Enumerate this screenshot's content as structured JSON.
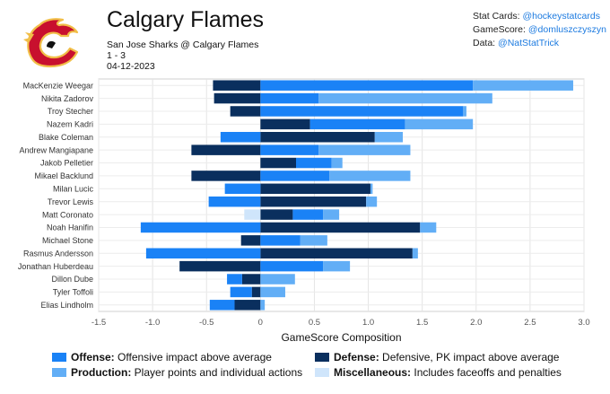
{
  "header": {
    "title": "Calgary Flames",
    "matchup": "San Jose Sharks @ Calgary Flames",
    "score": "1 - 3",
    "date": "04-12-2023"
  },
  "credits": [
    {
      "label": "Stat Cards:",
      "handle": "@hockeystatcards"
    },
    {
      "label": "GameScore:",
      "handle": "@domluszczyszyn"
    },
    {
      "label": "Data:",
      "handle": "@NatStatTrick"
    }
  ],
  "colors": {
    "offense": "#1a82f6",
    "defense": "#0a2f5e",
    "production": "#62aef6",
    "misc": "#cfe5fb",
    "logo_red": "#c8102e",
    "logo_yellow": "#f1be48"
  },
  "chart_data": {
    "type": "bar",
    "orientation": "horizontal-stacked",
    "xlabel": "GameScore Composition",
    "xlim": [
      -1.5,
      3.0
    ],
    "xticks": [
      "-1.5",
      "-1.0",
      "-0.5",
      "0",
      "0.5",
      "1.0",
      "1.5",
      "2.0",
      "2.5",
      "3.0"
    ],
    "grid": true,
    "stack_order": [
      "defense",
      "offense",
      "production",
      "misc"
    ],
    "players": [
      {
        "name": "MacKenzie Weegar",
        "offense": 1.97,
        "defense": -0.44,
        "production": 0.93,
        "misc": 0
      },
      {
        "name": "Nikita Zadorov",
        "offense": 0.54,
        "defense": -0.43,
        "production": 1.61,
        "misc": 0
      },
      {
        "name": "Troy Stecher",
        "offense": 1.88,
        "defense": -0.28,
        "production": 0.03,
        "misc": 0
      },
      {
        "name": "Nazem Kadri",
        "offense": 0.88,
        "defense": 0.46,
        "production": 0.63,
        "misc": 0
      },
      {
        "name": "Blake Coleman",
        "offense": -0.37,
        "defense": 1.06,
        "production": 0.26,
        "misc": 0
      },
      {
        "name": "Andrew Mangiapane",
        "offense": 0.54,
        "defense": -0.64,
        "production": 0.85,
        "misc": 0
      },
      {
        "name": "Jakob Pelletier",
        "offense": 0.33,
        "defense": 0.33,
        "production": 0.1,
        "misc": 0
      },
      {
        "name": "Mikael Backlund",
        "offense": 0.64,
        "defense": -0.64,
        "production": 0.75,
        "misc": 0
      },
      {
        "name": "Milan Lucic",
        "offense": -0.33,
        "defense": 1.02,
        "production": 0.02,
        "misc": 0
      },
      {
        "name": "Trevor Lewis",
        "offense": -0.48,
        "defense": 0.98,
        "production": 0.1,
        "misc": 0
      },
      {
        "name": "Matt Coronato",
        "offense": 0.28,
        "defense": 0.3,
        "production": 0.15,
        "misc": -0.15
      },
      {
        "name": "Noah Hanifin",
        "offense": -1.11,
        "defense": 1.48,
        "production": 0.15,
        "misc": 0
      },
      {
        "name": "Michael Stone",
        "offense": 0.37,
        "defense": -0.18,
        "production": 0.25,
        "misc": 0
      },
      {
        "name": "Rasmus Andersson",
        "offense": -1.06,
        "defense": 1.41,
        "production": 0.05,
        "misc": 0
      },
      {
        "name": "Jonathan Huberdeau",
        "offense": 0.58,
        "defense": -0.75,
        "production": 0.25,
        "misc": 0
      },
      {
        "name": "Dillon Dube",
        "offense": -0.14,
        "defense": -0.17,
        "production": 0.32,
        "misc": 0
      },
      {
        "name": "Tyler Toffoli",
        "offense": -0.2,
        "defense": -0.08,
        "production": 0.23,
        "misc": 0
      },
      {
        "name": "Elias Lindholm",
        "offense": -0.23,
        "defense": -0.24,
        "production": 0.04,
        "misc": 0
      }
    ],
    "legend": [
      {
        "key": "offense",
        "title": "Offense:",
        "desc": "Offensive impact above average"
      },
      {
        "key": "defense",
        "title": "Defense:",
        "desc": "Defensive, PK impact above average"
      },
      {
        "key": "production",
        "title": "Production:",
        "desc": "Player points and individual actions"
      },
      {
        "key": "misc",
        "title": "Miscellaneous:",
        "desc": "Includes faceoffs and penalties"
      }
    ]
  }
}
